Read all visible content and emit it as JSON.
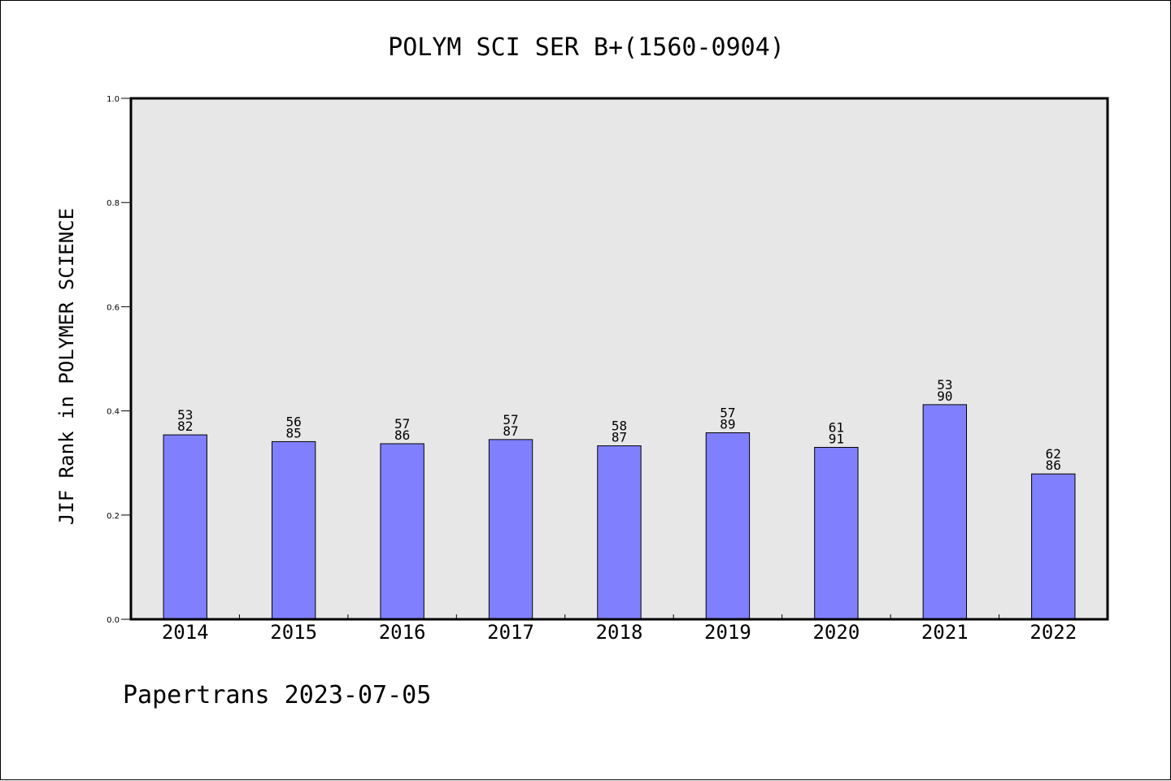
{
  "chart_data": {
    "type": "bar",
    "title": "POLYM SCI SER B+(1560-0904)",
    "ylabel": "JIF Rank in POLYMER SCIENCE",
    "xlabel": "",
    "categories": [
      "2014",
      "2015",
      "2016",
      "2017",
      "2018",
      "2019",
      "2020",
      "2021",
      "2022"
    ],
    "values": [
      0.354,
      0.341,
      0.337,
      0.345,
      0.333,
      0.358,
      0.33,
      0.412,
      0.279
    ],
    "bar_labels": [
      {
        "top": "53",
        "bottom": "82"
      },
      {
        "top": "56",
        "bottom": "85"
      },
      {
        "top": "57",
        "bottom": "86"
      },
      {
        "top": "57",
        "bottom": "87"
      },
      {
        "top": "58",
        "bottom": "87"
      },
      {
        "top": "57",
        "bottom": "89"
      },
      {
        "top": "61",
        "bottom": "91"
      },
      {
        "top": "53",
        "bottom": "90"
      },
      {
        "top": "62",
        "bottom": "86"
      }
    ],
    "ylim": [
      0,
      1.0
    ],
    "yticks": [
      "0.0",
      "0.2",
      "0.4",
      "0.6",
      "0.8",
      "1.0"
    ],
    "grid": false,
    "colors": {
      "bar": "#8080ff",
      "plot_background": "#e7e7e7",
      "axis": "#000000"
    }
  },
  "footer": "Papertrans 2023-07-05"
}
